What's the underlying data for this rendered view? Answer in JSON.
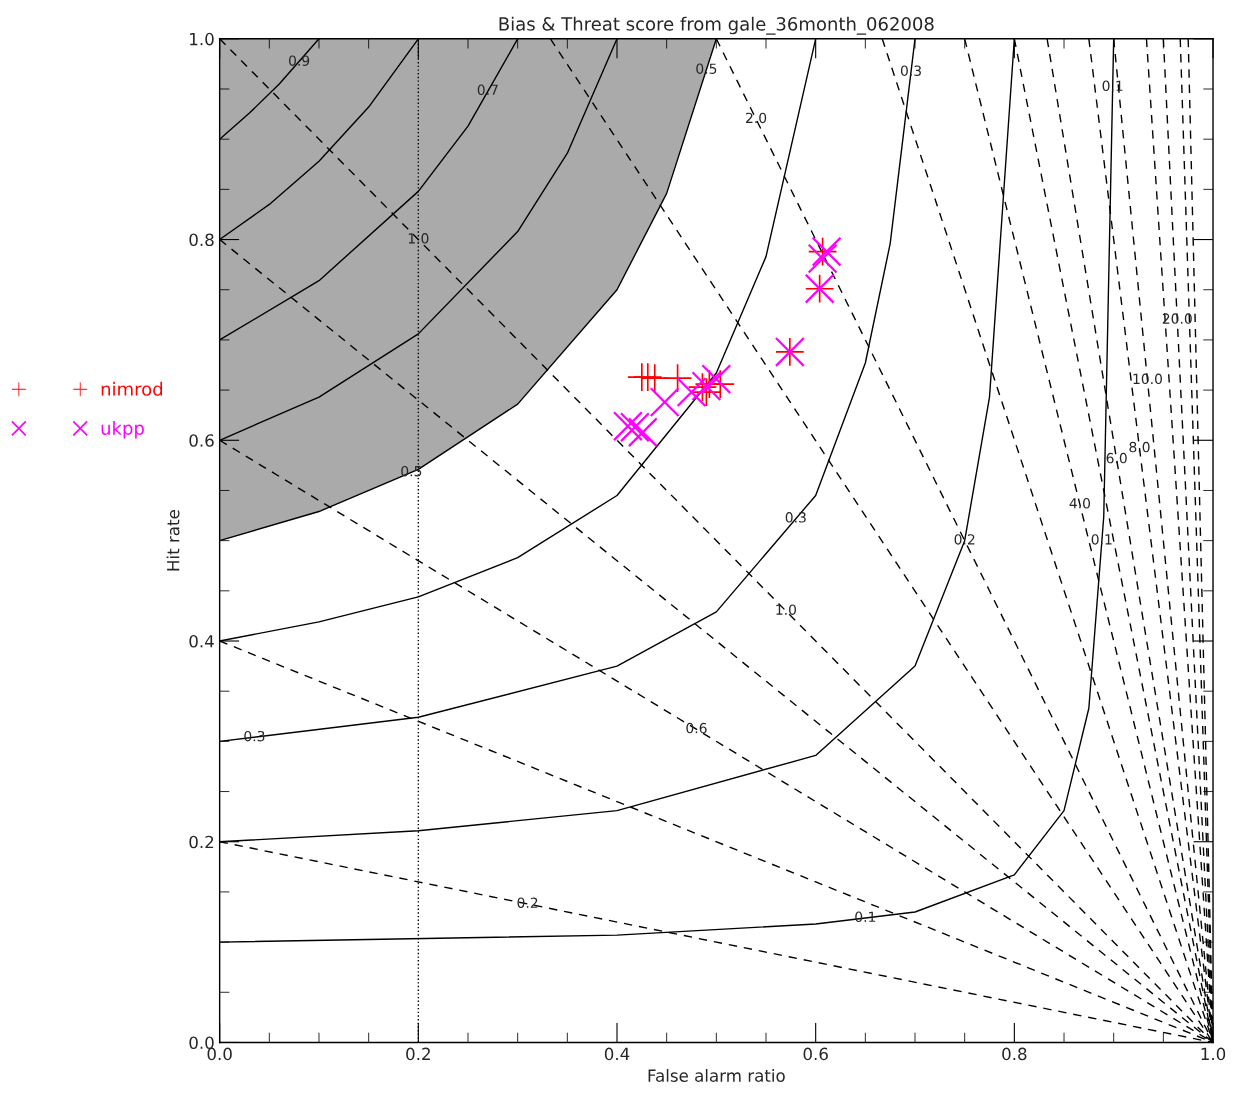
{
  "chart_data": {
    "type": "scatter",
    "title": "Bias & Threat score from gale_36month_062008",
    "xlabel": "False alarm ratio",
    "ylabel": "Hit rate",
    "xlim": [
      0.0,
      1.0
    ],
    "ylim": [
      0.0,
      1.0
    ],
    "xticks": [
      {
        "value": 0,
        "label": "0.0"
      },
      0.2,
      0.4,
      0.6,
      0.8,
      {
        "value": 1,
        "label": "1.0"
      }
    ],
    "yticks": [
      {
        "value": 0,
        "label": "0.0"
      },
      0.2,
      0.4,
      0.6,
      0.8,
      {
        "value": 1,
        "label": "1.0"
      }
    ],
    "grid": false,
    "legend": "left",
    "ref_lines": [
      {
        "axis": "x",
        "value": 0.2,
        "color": "#000000",
        "line_style": "dotted"
      }
    ],
    "series": [
      {
        "type": "line",
        "color": "#000000",
        "line_style": "solid",
        "x": [
          0,
          0.1,
          0.2,
          0.3,
          0.4,
          0.45,
          0.5
        ],
        "values": [
          0.5,
          0.529,
          0.571,
          0.636,
          0.75,
          0.846,
          1.0
        ],
        "lower": [
          0.5,
          0.529,
          0.571,
          0.636,
          0.75,
          0.846,
          1.0
        ],
        "upper": [
          1,
          1,
          1,
          1,
          1,
          1,
          1
        ]
      },
      {
        "type": "line",
        "color": "#000000",
        "line_style": "solid",
        "x": [
          0,
          0.03,
          0.06,
          0.1
        ],
        "values": [
          0.9,
          0.926,
          0.955,
          1.0
        ]
      },
      {
        "type": "line",
        "color": "#000000",
        "line_style": "solid",
        "x": [
          0,
          0.05,
          0.1,
          0.15,
          0.2
        ],
        "values": [
          0.8,
          0.835,
          0.878,
          0.932,
          1.0
        ]
      },
      {
        "type": "line",
        "color": "#000000",
        "line_style": "solid",
        "x": [
          0,
          0.1,
          0.2,
          0.25,
          0.3
        ],
        "values": [
          0.7,
          0.759,
          0.848,
          0.913,
          1.0
        ]
      },
      {
        "type": "line",
        "color": "#000000",
        "line_style": "solid",
        "x": [
          0,
          0.1,
          0.2,
          0.3,
          0.35,
          0.4
        ],
        "values": [
          0.6,
          0.643,
          0.706,
          0.808,
          0.886,
          1.0
        ]
      },
      {
        "type": "line",
        "color": "#000000",
        "line_style": "solid",
        "x": [
          0,
          0.1,
          0.2,
          0.3,
          0.4,
          0.5,
          0.55,
          0.6
        ],
        "values": [
          0.4,
          0.419,
          0.444,
          0.483,
          0.545,
          0.667,
          0.783,
          1.0
        ]
      },
      {
        "type": "line",
        "color": "#000000",
        "line_style": "solid",
        "x": [
          0,
          0.2,
          0.4,
          0.5,
          0.6,
          0.65,
          0.675,
          0.7
        ],
        "values": [
          0.3,
          0.324,
          0.375,
          0.429,
          0.545,
          0.677,
          0.796,
          1.0
        ]
      },
      {
        "type": "line",
        "color": "#000000",
        "line_style": "solid",
        "x": [
          0,
          0.2,
          0.4,
          0.6,
          0.7,
          0.75,
          0.775,
          0.8
        ],
        "values": [
          0.2,
          0.211,
          0.231,
          0.286,
          0.375,
          0.5,
          0.643,
          1.0
        ]
      },
      {
        "type": "line",
        "color": "#000000",
        "line_style": "solid",
        "x": [
          0,
          0.4,
          0.6,
          0.7,
          0.8,
          0.85,
          0.875,
          0.89,
          0.9
        ],
        "values": [
          0.1,
          0.107,
          0.118,
          0.13,
          0.167,
          0.231,
          0.333,
          0.524,
          1.0
        ]
      },
      {
        "type": "line",
        "color": "#000000",
        "line_style": "dashed",
        "x": [
          0,
          1
        ],
        "values": [
          0.2,
          0
        ]
      },
      {
        "type": "line",
        "color": "#000000",
        "line_style": "dashed",
        "x": [
          0,
          1
        ],
        "values": [
          0.4,
          0
        ]
      },
      {
        "type": "line",
        "color": "#000000",
        "line_style": "dashed",
        "x": [
          0,
          1
        ],
        "values": [
          0.6,
          0
        ]
      },
      {
        "type": "line",
        "color": "#000000",
        "line_style": "dashed",
        "x": [
          0,
          1
        ],
        "values": [
          0.8,
          0
        ]
      },
      {
        "type": "line",
        "color": "#000000",
        "line_style": "dashed",
        "x": [
          0,
          1
        ],
        "values": [
          1.0,
          0
        ]
      },
      {
        "type": "line",
        "color": "#000000",
        "line_style": "dashed",
        "x": [
          0.333,
          1
        ],
        "values": [
          1,
          0
        ]
      },
      {
        "type": "line",
        "color": "#000000",
        "line_style": "dashed",
        "x": [
          0.5,
          1
        ],
        "values": [
          1,
          0
        ]
      },
      {
        "type": "line",
        "color": "#000000",
        "line_style": "dashed",
        "x": [
          0.667,
          1
        ],
        "values": [
          1,
          0
        ]
      },
      {
        "type": "line",
        "color": "#000000",
        "line_style": "dashed",
        "x": [
          0.75,
          1
        ],
        "values": [
          1,
          0
        ]
      },
      {
        "type": "line",
        "color": "#000000",
        "line_style": "dashed",
        "x": [
          0.8,
          1
        ],
        "values": [
          1,
          0
        ]
      },
      {
        "type": "line",
        "color": "#000000",
        "line_style": "dashed",
        "x": [
          0.833,
          1
        ],
        "values": [
          1,
          0
        ]
      },
      {
        "type": "line",
        "color": "#000000",
        "line_style": "dashed",
        "x": [
          0.875,
          1
        ],
        "values": [
          1,
          0
        ]
      },
      {
        "type": "line",
        "color": "#000000",
        "line_style": "dashed",
        "x": [
          0.9,
          1
        ],
        "values": [
          1,
          0
        ]
      },
      {
        "type": "line",
        "color": "#000000",
        "line_style": "dashed",
        "x": [
          0.933,
          1
        ],
        "values": [
          1,
          0
        ]
      },
      {
        "type": "line",
        "color": "#000000",
        "line_style": "dashed",
        "x": [
          0.95,
          1
        ],
        "values": [
          1,
          0
        ]
      },
      {
        "type": "line",
        "color": "#000000",
        "line_style": "dashed",
        "x": [
          0.967,
          1
        ],
        "values": [
          1,
          0
        ]
      },
      {
        "type": "line",
        "color": "#000000",
        "line_style": "dashed",
        "x": [
          0.975,
          1
        ],
        "values": [
          1,
          0
        ]
      },
      {
        "name": "nimrod",
        "color": "#ff0000",
        "x": [
          0.425,
          0.431,
          0.438,
          0.461,
          0.486,
          0.493,
          0.504,
          0.49,
          0.607,
          0.604,
          0.574
        ],
        "values": [
          0.663,
          0.663,
          0.662,
          0.662,
          0.653,
          0.656,
          0.656,
          0.648,
          0.788,
          0.751,
          0.688
        ]
      },
      {
        "name": "ukpp",
        "color": "#ff00ff",
        "marker": "cross",
        "x": [
          0.411,
          0.418,
          0.426,
          0.448,
          0.475,
          0.49,
          0.5,
          0.611,
          0.607,
          0.604,
          0.574
        ],
        "values": [
          0.614,
          0.613,
          0.608,
          0.638,
          0.648,
          0.654,
          0.661,
          0.788,
          0.781,
          0.751,
          0.688
        ]
      }
    ],
    "annotations": [
      {
        "text": "0.9",
        "x": 0.08,
        "y": 0.977
      },
      {
        "text": "0.7",
        "x": 0.27,
        "y": 0.948
      },
      {
        "text": "0.5",
        "x": 0.49,
        "y": 0.969
      },
      {
        "text": "0.3",
        "x": 0.696,
        "y": 0.967
      },
      {
        "text": "0.1",
        "x": 0.899,
        "y": 0.952
      },
      {
        "text": "2.0",
        "x": 0.54,
        "y": 0.92
      },
      {
        "text": "1.0",
        "x": 0.2,
        "y": 0.8
      },
      {
        "text": "0.5",
        "x": 0.193,
        "y": 0.568
      },
      {
        "text": "1.0",
        "x": 0.57,
        "y": 0.43
      },
      {
        "text": "0.3",
        "x": 0.58,
        "y": 0.522
      },
      {
        "text": "0.6",
        "x": 0.48,
        "y": 0.312
      },
      {
        "text": "0.3",
        "x": 0.035,
        "y": 0.304
      },
      {
        "text": "0.2",
        "x": 0.31,
        "y": 0.138
      },
      {
        "text": "0.1",
        "x": 0.65,
        "y": 0.124
      },
      {
        "text": "0.2",
        "x": 0.75,
        "y": 0.5
      },
      {
        "text": "0.1",
        "x": 0.888,
        "y": 0.5
      },
      {
        "text": "4.0",
        "x": 0.866,
        "y": 0.536
      },
      {
        "text": "6.0",
        "x": 0.903,
        "y": 0.581
      },
      {
        "text": "8.0",
        "x": 0.926,
        "y": 0.592
      },
      {
        "text": "10.0",
        "x": 0.934,
        "y": 0.66
      },
      {
        "text": "20.0",
        "x": 0.964,
        "y": 0.72
      }
    ]
  }
}
